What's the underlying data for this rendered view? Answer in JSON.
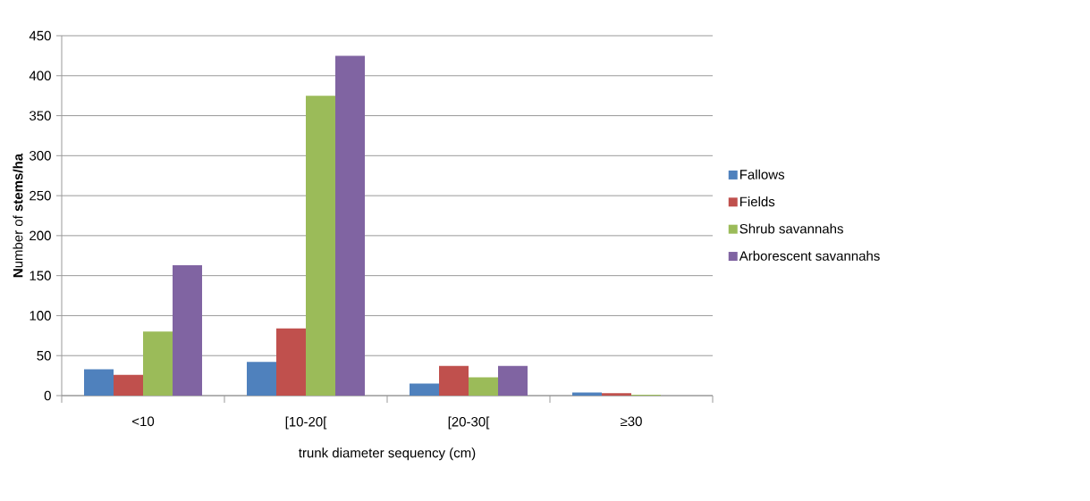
{
  "chart_data": {
    "type": "bar",
    "xlabel": "trunk diameter sequency (cm)",
    "ylabel": "**N**umber of **stems/ha**",
    "categories": [
      "<10",
      "[10-20[",
      "[20-30[",
      "≥30"
    ],
    "series": [
      {
        "name": "Fallows",
        "color": "#4f81bd",
        "values": [
          33,
          42,
          15,
          4
        ]
      },
      {
        "name": "Fields",
        "color": "#c0504d",
        "values": [
          26,
          84,
          37,
          3
        ]
      },
      {
        "name": "Shrub savannahs",
        "color": "#9bbb59",
        "values": [
          80,
          375,
          23,
          1
        ]
      },
      {
        "name": "Arborescent savannahs",
        "color": "#8064a2",
        "values": [
          163,
          425,
          37,
          null
        ]
      }
    ],
    "ylim": [
      0,
      450
    ],
    "yticks": [
      0,
      50,
      100,
      150,
      200,
      250,
      300,
      350,
      400,
      450
    ],
    "grid": "y",
    "legend": "right"
  }
}
